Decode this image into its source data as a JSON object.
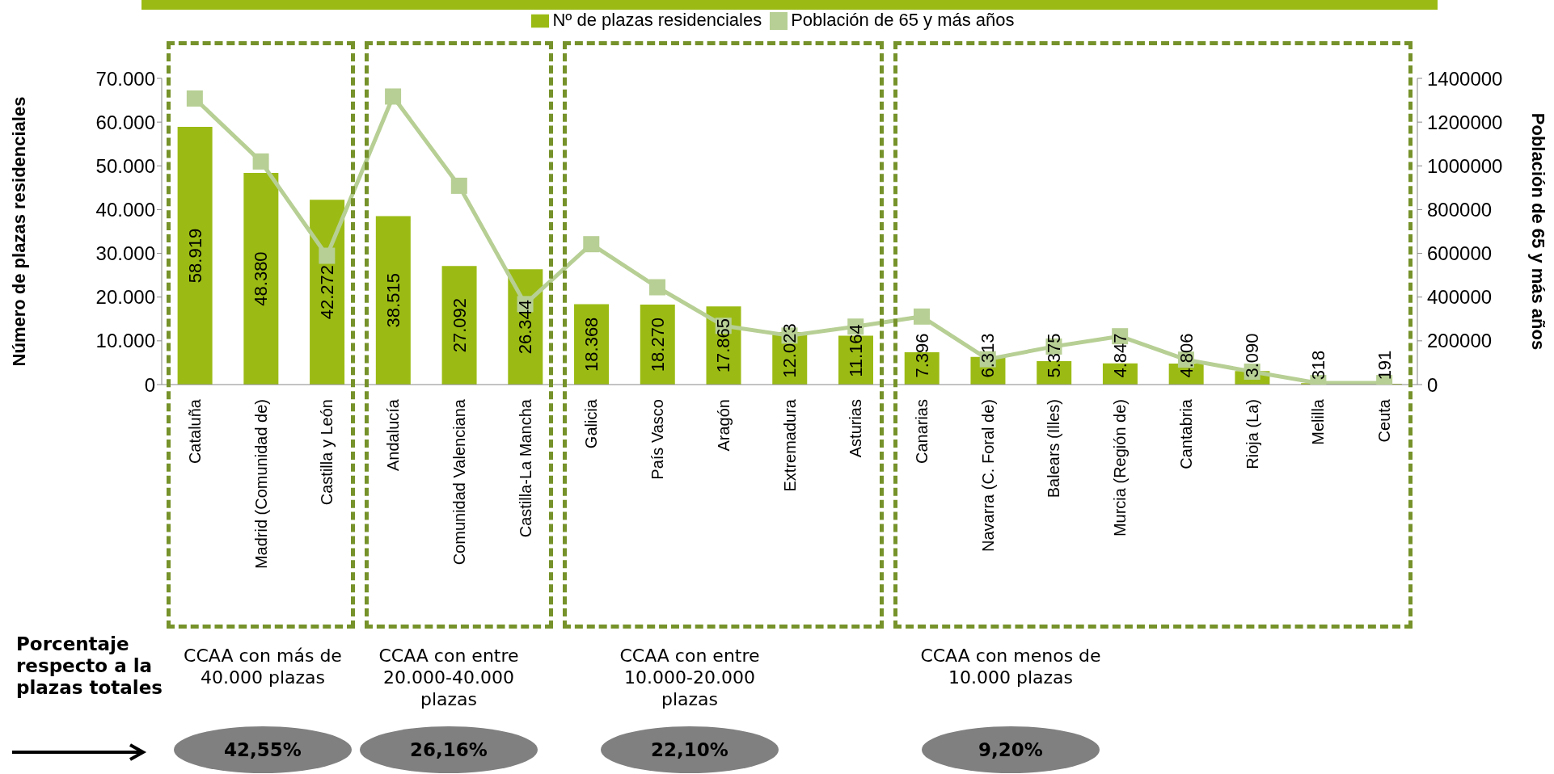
{
  "chart_data": {
    "type": "bar",
    "ylabel": "Número de plazas residenciales",
    "y2label": "Población de 65 y más años",
    "categories": [
      "Cataluña",
      "Madrid (Comunidad de)",
      "Castilla y León",
      "Andalucía",
      "Comunidad Valenciana",
      "Castilla-La Mancha",
      "Galicia",
      "País Vasco",
      "Aragón",
      "Extremadura",
      "Asturias",
      "Canarias",
      "Navarra (C. Foral de)",
      "Balears (Illes)",
      "Murcia (Región de)",
      "Cantabria",
      "Rioja (La)",
      "Melilla",
      "Ceuta"
    ],
    "series": [
      {
        "name": "Nº de plazas residenciales",
        "color": "#9bbb14",
        "values": [
          58919,
          48380,
          42272,
          38515,
          27092,
          26344,
          18368,
          18270,
          17865,
          12023,
          11164,
          7396,
          6313,
          5375,
          4847,
          4806,
          3090,
          318,
          191
        ],
        "value_labels": [
          "58.919",
          "48.380",
          "42.272",
          "38.515",
          "27.092",
          "26.344",
          "18.368",
          "18.270",
          "17.865",
          "12.023",
          "11.164",
          "7.396",
          "6.313",
          "5.375",
          "4.847",
          "4.806",
          "3.090",
          "318",
          "191"
        ]
      },
      {
        "name": "Población de 65 y más años",
        "type": "line",
        "axis": "y2",
        "color": "#b7cf94",
        "marker": "square",
        "values": [
          1308000,
          1020000,
          589000,
          1317000,
          909000,
          368000,
          642000,
          445000,
          269000,
          224000,
          265000,
          311000,
          116000,
          174000,
          221000,
          114000,
          59000,
          7000,
          7000
        ]
      }
    ],
    "ylim": [
      0,
      70000
    ],
    "yticks": [
      {
        "value": 0,
        "label": "0"
      },
      {
        "value": 10000,
        "label": "10.000"
      },
      {
        "value": 20000,
        "label": "20.000"
      },
      {
        "value": 30000,
        "label": "30.000"
      },
      {
        "value": 40000,
        "label": "40.000"
      },
      {
        "value": 50000,
        "label": "50.000"
      },
      {
        "value": 60000,
        "label": "60.000"
      },
      {
        "value": 70000,
        "label": "70.000"
      }
    ],
    "y2lim": [
      0,
      1400000
    ],
    "y2ticks": [
      0,
      200000,
      400000,
      600000,
      800000,
      1000000,
      1200000,
      1400000
    ],
    "grid": false,
    "legend": "top",
    "annotations": [
      "Porcentaje respecto a la plazas totales",
      "CCAA con más de 40.000 plazas",
      "CCAA con entre 20.000-40.000 plazas",
      "CCAA con entre 10.000-20.000 plazas",
      "CCAA con menos de 10.000 plazas",
      "42,55%",
      "26,16%",
      "22,10%",
      "9,20%"
    ]
  }
}
